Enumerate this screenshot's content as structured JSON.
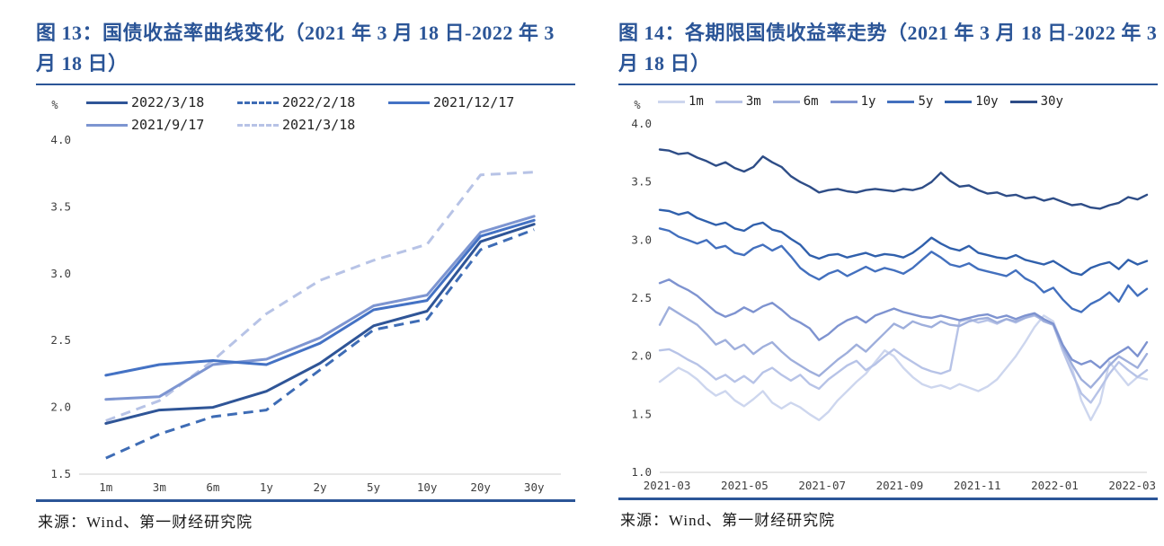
{
  "colors": {
    "accent": "#2B5597",
    "axis_text": "#3F3F3F",
    "baseline": "#CFCFCF"
  },
  "panels": [
    {
      "title": "图 13：国债收益率曲线变化（2021 年 3 月 18 日-2022 年 3 月 18 日）",
      "unit_label": "%",
      "source": "来源：Wind、第一财经研究院"
    },
    {
      "title": "图 14：各期限国债收益率走势（2021 年 3 月 18 日-2022 年 3 月 18 日）",
      "unit_label": "%",
      "source": "来源：Wind、第一财经研究院"
    }
  ],
  "chart_data": [
    {
      "type": "line",
      "title": "国债收益率曲线变化（2021年3月18日-2022年3月18日）",
      "ylabel": "%",
      "categories": [
        "1m",
        "3m",
        "6m",
        "1y",
        "2y",
        "5y",
        "10y",
        "20y",
        "30y"
      ],
      "ylim": [
        1.5,
        4.0
      ],
      "yticks": [
        1.5,
        2.0,
        2.5,
        3.0,
        3.5,
        4.0
      ],
      "grid": false,
      "legend_position": "top",
      "legend_layout": "grid-3col",
      "series": [
        {
          "name": "2022/3/18",
          "color": "#2F5597",
          "dash": "solid",
          "values": [
            1.88,
            1.98,
            2.0,
            2.12,
            2.33,
            2.61,
            2.72,
            3.24,
            3.37
          ]
        },
        {
          "name": "2022/2/18",
          "color": "#3E6CB5",
          "dash": "dashed",
          "values": [
            1.62,
            1.8,
            1.93,
            1.98,
            2.28,
            2.58,
            2.66,
            3.18,
            3.33
          ]
        },
        {
          "name": "2021/12/17",
          "color": "#4472C4",
          "dash": "solid",
          "values": [
            2.24,
            2.32,
            2.35,
            2.32,
            2.48,
            2.73,
            2.8,
            3.28,
            3.4
          ]
        },
        {
          "name": "2021/9/17",
          "color": "#7D95D1",
          "dash": "solid",
          "values": [
            2.06,
            2.08,
            2.32,
            2.36,
            2.52,
            2.76,
            2.84,
            3.31,
            3.43
          ]
        },
        {
          "name": "2021/3/18",
          "color": "#B7C3E6",
          "dash": "dashed",
          "values": [
            1.9,
            2.05,
            2.35,
            2.7,
            2.95,
            3.1,
            3.22,
            3.74,
            3.76
          ]
        }
      ]
    },
    {
      "type": "line",
      "title": "各期限国债收益率走势（2021年3月18日-2022年3月18日）",
      "ylabel": "%",
      "x_tick_labels": [
        "2021-03",
        "2021-05",
        "2021-07",
        "2021-09",
        "2021-11",
        "2022-01",
        "2022-03"
      ],
      "ylim": [
        1.0,
        4.0
      ],
      "yticks": [
        1.0,
        1.5,
        2.0,
        2.5,
        3.0,
        3.5,
        4.0
      ],
      "grid": false,
      "legend_position": "top",
      "legend_layout": "row",
      "series": [
        {
          "name": "1m",
          "color": "#CDD6EE",
          "dash": "solid",
          "values": [
            1.78,
            1.84,
            1.9,
            1.86,
            1.8,
            1.72,
            1.66,
            1.7,
            1.62,
            1.57,
            1.63,
            1.7,
            1.6,
            1.55,
            1.6,
            1.56,
            1.5,
            1.45,
            1.52,
            1.62,
            1.7,
            1.78,
            1.85,
            1.95,
            2.05,
            2.0,
            1.9,
            1.82,
            1.76,
            1.73,
            1.75,
            1.72,
            1.76,
            1.73,
            1.7,
            1.74,
            1.8,
            1.9,
            2.0,
            2.12,
            2.25,
            2.35,
            2.3,
            2.1,
            1.9,
            1.62,
            1.45,
            1.6,
            1.95,
            1.85,
            1.75,
            1.82,
            1.8
          ]
        },
        {
          "name": "3m",
          "color": "#B7C3E7",
          "dash": "solid",
          "values": [
            2.05,
            2.06,
            2.02,
            1.97,
            1.93,
            1.87,
            1.8,
            1.84,
            1.78,
            1.83,
            1.77,
            1.86,
            1.9,
            1.84,
            1.79,
            1.84,
            1.76,
            1.72,
            1.8,
            1.86,
            1.92,
            1.96,
            1.88,
            1.93,
            2.0,
            2.06,
            2.0,
            1.95,
            1.9,
            1.87,
            1.85,
            1.88,
            2.3,
            2.32,
            2.29,
            2.31,
            2.28,
            2.32,
            2.29,
            2.33,
            2.35,
            2.31,
            2.27,
            2.05,
            1.86,
            1.68,
            1.6,
            1.72,
            1.85,
            1.95,
            1.88,
            1.82,
            1.88
          ]
        },
        {
          "name": "6m",
          "color": "#9FAFDC",
          "dash": "solid",
          "values": [
            2.27,
            2.42,
            2.37,
            2.32,
            2.27,
            2.19,
            2.1,
            2.14,
            2.06,
            2.1,
            2.02,
            2.08,
            2.12,
            2.04,
            1.97,
            1.92,
            1.87,
            1.83,
            1.9,
            1.97,
            2.03,
            2.1,
            2.04,
            2.12,
            2.2,
            2.28,
            2.24,
            2.3,
            2.27,
            2.25,
            2.3,
            2.27,
            2.26,
            2.3,
            2.32,
            2.33,
            2.29,
            2.32,
            2.3,
            2.33,
            2.36,
            2.3,
            2.27,
            2.08,
            1.93,
            1.8,
            1.73,
            1.82,
            1.92,
            2.0,
            1.95,
            1.9,
            2.02
          ]
        },
        {
          "name": "1y",
          "color": "#7E93D0",
          "dash": "solid",
          "values": [
            2.63,
            2.66,
            2.61,
            2.57,
            2.52,
            2.45,
            2.38,
            2.34,
            2.37,
            2.42,
            2.38,
            2.43,
            2.46,
            2.4,
            2.33,
            2.29,
            2.24,
            2.14,
            2.19,
            2.26,
            2.31,
            2.34,
            2.29,
            2.35,
            2.38,
            2.41,
            2.38,
            2.36,
            2.34,
            2.33,
            2.35,
            2.33,
            2.31,
            2.33,
            2.35,
            2.36,
            2.33,
            2.35,
            2.32,
            2.35,
            2.37,
            2.32,
            2.28,
            2.1,
            1.97,
            1.93,
            1.96,
            1.9,
            1.98,
            2.03,
            2.08,
            2.0,
            2.12
          ]
        },
        {
          "name": "5y",
          "color": "#4370BE",
          "dash": "solid",
          "values": [
            3.1,
            3.08,
            3.03,
            3.0,
            2.97,
            3.0,
            2.93,
            2.95,
            2.89,
            2.87,
            2.93,
            2.96,
            2.91,
            2.95,
            2.86,
            2.76,
            2.7,
            2.66,
            2.71,
            2.74,
            2.69,
            2.73,
            2.77,
            2.73,
            2.76,
            2.74,
            2.71,
            2.76,
            2.83,
            2.9,
            2.85,
            2.79,
            2.77,
            2.8,
            2.75,
            2.73,
            2.71,
            2.69,
            2.74,
            2.67,
            2.63,
            2.55,
            2.59,
            2.49,
            2.41,
            2.38,
            2.45,
            2.49,
            2.55,
            2.47,
            2.61,
            2.52,
            2.58
          ]
        },
        {
          "name": "10y",
          "color": "#3060AC",
          "dash": "solid",
          "values": [
            3.26,
            3.25,
            3.22,
            3.24,
            3.19,
            3.16,
            3.13,
            3.15,
            3.1,
            3.08,
            3.13,
            3.15,
            3.09,
            3.07,
            3.01,
            2.96,
            2.87,
            2.84,
            2.87,
            2.88,
            2.85,
            2.87,
            2.89,
            2.86,
            2.88,
            2.87,
            2.85,
            2.89,
            2.95,
            3.02,
            2.97,
            2.93,
            2.91,
            2.95,
            2.89,
            2.87,
            2.85,
            2.84,
            2.87,
            2.83,
            2.81,
            2.79,
            2.82,
            2.77,
            2.72,
            2.7,
            2.76,
            2.79,
            2.81,
            2.75,
            2.83,
            2.79,
            2.82
          ]
        },
        {
          "name": "30y",
          "color": "#2E4D87",
          "dash": "solid",
          "values": [
            3.78,
            3.77,
            3.74,
            3.75,
            3.71,
            3.68,
            3.64,
            3.67,
            3.62,
            3.59,
            3.63,
            3.72,
            3.67,
            3.63,
            3.55,
            3.5,
            3.46,
            3.41,
            3.43,
            3.44,
            3.42,
            3.41,
            3.43,
            3.44,
            3.43,
            3.42,
            3.44,
            3.43,
            3.45,
            3.5,
            3.58,
            3.51,
            3.46,
            3.47,
            3.43,
            3.4,
            3.41,
            3.38,
            3.39,
            3.36,
            3.37,
            3.34,
            3.36,
            3.33,
            3.3,
            3.31,
            3.28,
            3.27,
            3.3,
            3.32,
            3.37,
            3.35,
            3.39
          ]
        }
      ]
    }
  ]
}
